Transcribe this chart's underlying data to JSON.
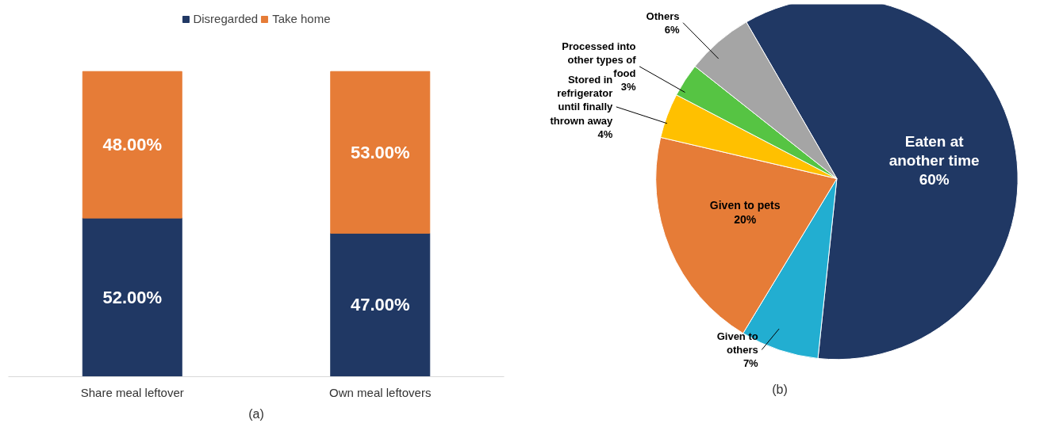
{
  "chart_data": [
    {
      "type": "bar",
      "stacked": true,
      "categories": [
        "Share meal leftover",
        "Own meal leftovers"
      ],
      "series": [
        {
          "name": "Disregarded",
          "color": "#203864",
          "values": [
            52,
            47
          ],
          "value_labels": [
            "52.00%",
            "47.00%"
          ]
        },
        {
          "name": "Take home",
          "color": "#e67c37",
          "values": [
            48,
            53
          ],
          "value_labels": [
            "48.00%",
            "53.00%"
          ]
        }
      ],
      "legend": "top",
      "grid": false,
      "annotations": [
        "(a)"
      ]
    },
    {
      "type": "pie",
      "categories": [
        "Eaten at another time",
        "Given to others",
        "Given to pets",
        "Stored in refrigerator until finally thrown away",
        "Processed into other types of food",
        "Others"
      ],
      "values": [
        60,
        7,
        20,
        4,
        3,
        6
      ],
      "value_labels": [
        "60%",
        "7%",
        "20%",
        "4%",
        "3%",
        "6%"
      ],
      "colors": [
        "#203864",
        "#22aed1",
        "#e67c37",
        "#ffc000",
        "#56c443",
        "#a5a5a5"
      ],
      "data_labels": true,
      "annotations": [
        "(b)"
      ]
    }
  ]
}
